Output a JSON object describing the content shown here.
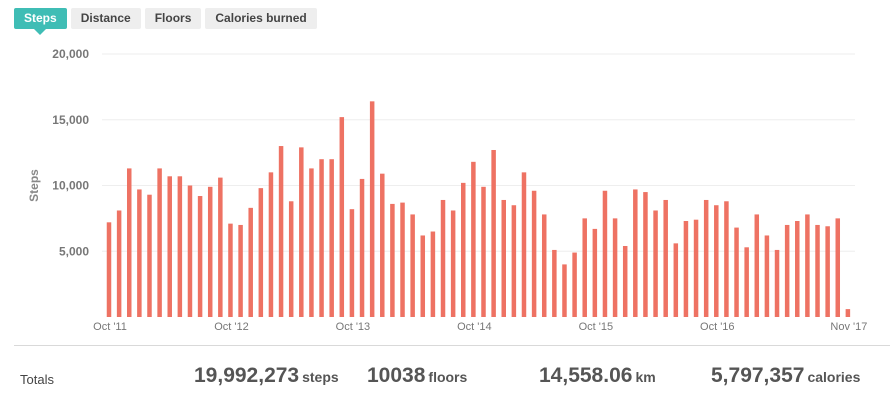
{
  "tabs": [
    {
      "label": "Steps",
      "active": true
    },
    {
      "label": "Distance",
      "active": false
    },
    {
      "label": "Floors",
      "active": false
    },
    {
      "label": "Calories burned",
      "active": false
    }
  ],
  "colors": {
    "bar": "#ee7263",
    "accent": "#3fbdb5",
    "grid": "#eeeeee"
  },
  "chart_data": {
    "type": "bar",
    "ylabel": "Steps",
    "ylim": [
      0,
      20000
    ],
    "yticks": [
      5000,
      10000,
      15000,
      20000
    ],
    "ytick_labels": [
      "5,000",
      "10,000",
      "15,000",
      "20,000"
    ],
    "grid": true,
    "xtick_labels": [
      "Oct '11",
      "Oct '12",
      "Oct '13",
      "Oct '14",
      "Oct '15",
      "Oct '16",
      "Nov '17"
    ],
    "xtick_indices": [
      0,
      12,
      24,
      36,
      48,
      60,
      73
    ],
    "values": [
      7200,
      8100,
      11300,
      9700,
      9300,
      11300,
      10700,
      10700,
      10000,
      9200,
      9900,
      10600,
      7100,
      7000,
      8300,
      9800,
      11000,
      13000,
      8800,
      12900,
      11300,
      12000,
      12000,
      15200,
      8200,
      10500,
      16400,
      10900,
      8600,
      8700,
      7800,
      6200,
      6500,
      8900,
      8100,
      10200,
      11800,
      9900,
      12700,
      8900,
      8500,
      11000,
      9600,
      7800,
      5100,
      4000,
      4900,
      7500,
      6700,
      9600,
      7500,
      5400,
      9700,
      9500,
      8100,
      8900,
      5600,
      7300,
      7400,
      8900,
      8500,
      8800,
      6800,
      5300,
      7800,
      6200,
      5100,
      7000,
      7300,
      7800,
      7000,
      6900,
      7500,
      600
    ]
  },
  "totals": {
    "label": "Totals",
    "steps": {
      "value": "19,992,273",
      "unit": "steps"
    },
    "floors": {
      "value": "10038",
      "unit": "floors"
    },
    "distance": {
      "value": "14,558.06",
      "unit": "km"
    },
    "calories": {
      "value": "5,797,357",
      "unit": "calories"
    }
  }
}
